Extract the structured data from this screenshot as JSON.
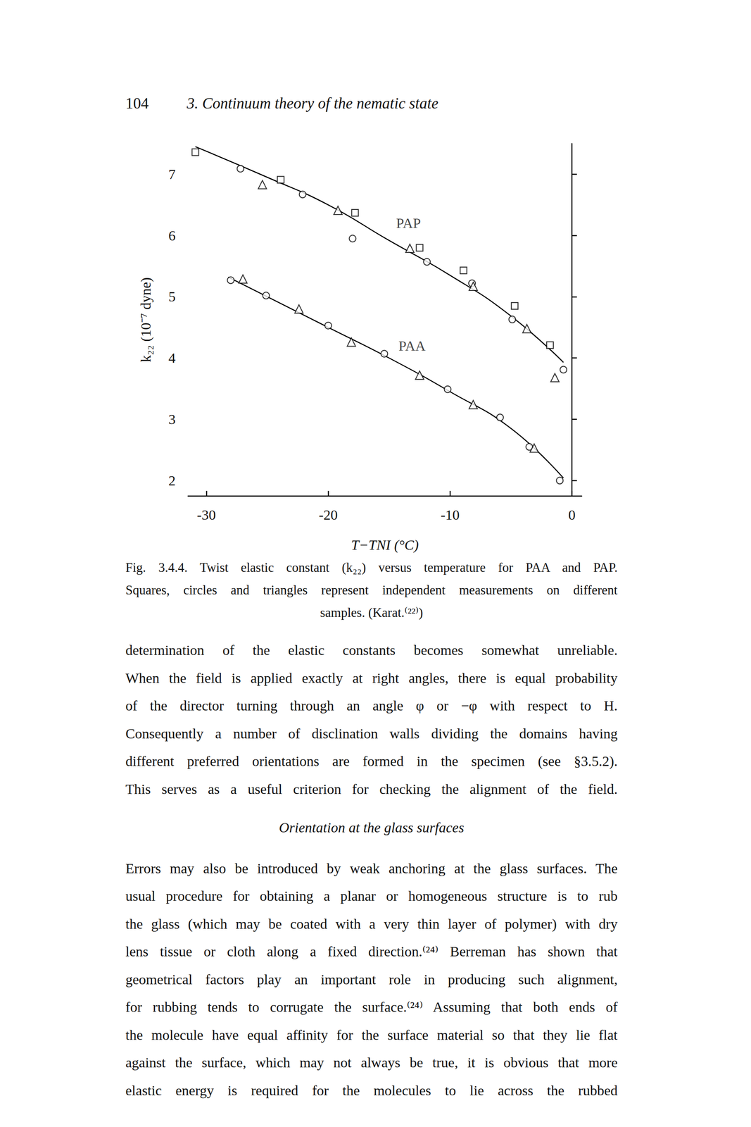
{
  "header": {
    "page_number": "104",
    "running_title": "3. Continuum theory of the nematic state"
  },
  "chart_data": {
    "type": "scatter",
    "x_label": "T−TNI (°C)",
    "y_label": "k₂₂ (10⁻⁷ dyne)",
    "xlim": [
      -31.5,
      0.8
    ],
    "xticks": [
      -30,
      -20,
      -10,
      0
    ],
    "ylim": [
      1.75,
      7.5
    ],
    "yticks": [
      2,
      3,
      4,
      5,
      6,
      7
    ],
    "grid": false,
    "annotations": [
      {
        "text": "PAP",
        "x": -14.6,
        "y": 6.2
      },
      {
        "text": "PAA",
        "x": -14.4,
        "y": 4.2
      }
    ],
    "series": [
      {
        "name": "PAP",
        "type": "line",
        "color": "#000000",
        "line_style": "solid",
        "x": [
          -30.9,
          -25,
          -20,
          -15.1,
          -10,
          -5.1,
          -0.7
        ],
        "values": [
          7.45,
          6.95,
          6.5,
          5.93,
          5.35,
          4.7,
          3.93
        ]
      },
      {
        "name": "PAA",
        "type": "line",
        "color": "#000000",
        "line_style": "solid",
        "x": [
          -28.2,
          -25,
          -20,
          -15,
          -10,
          -5,
          -0.7
        ],
        "values": [
          5.32,
          5.0,
          4.5,
          4.0,
          3.45,
          2.85,
          2.04
        ]
      },
      {
        "type": "scatter",
        "marker": "square",
        "color": "#000000",
        "x": [
          -30.9,
          -23.9,
          -17.8,
          -12.5,
          -8.9,
          -4.7,
          -1.8
        ],
        "values": [
          7.36,
          6.91,
          6.37,
          5.8,
          5.43,
          4.85,
          4.21
        ]
      },
      {
        "type": "scatter",
        "marker": "circle",
        "color": "#000000",
        "x": [
          -27.2,
          -22.1,
          -18.0,
          -11.9,
          -8.2,
          -4.9,
          -0.7,
          -28.0,
          -25.1,
          -20.0,
          -15.4,
          -10.2,
          -5.9,
          -3.5,
          -1.0
        ],
        "values": [
          7.09,
          6.67,
          5.95,
          5.57,
          5.22,
          4.63,
          3.81,
          5.27,
          5.02,
          4.53,
          4.07,
          3.49,
          3.03,
          2.55,
          2.0
        ]
      },
      {
        "type": "scatter",
        "marker": "triangle",
        "color": "#000000",
        "x": [
          -25.4,
          -19.2,
          -13.3,
          -8.1,
          -3.7,
          -1.4,
          -27.0,
          -22.4,
          -18.1,
          -12.5,
          -8.1,
          -3.1
        ],
        "values": [
          6.83,
          6.41,
          5.79,
          5.17,
          4.48,
          3.68,
          5.29,
          4.8,
          4.26,
          3.72,
          3.24,
          2.53
        ]
      }
    ]
  },
  "caption": {
    "lines": [
      "Fig. 3.4.4. Twist elastic constant (k₂₂) versus temperature for PAA and PAP.",
      "Squares, circles and triangles represent independent measurements on different",
      "samples. (Karat.⁽²²⁾)"
    ]
  },
  "body": [
    {
      "type": "paragraph",
      "lines": [
        "determination of the elastic constants becomes somewhat unreliable.",
        "When the field is applied exactly at right angles, there is equal probability",
        "of the director turning through an angle φ or −φ with respect to H.",
        "Consequently a number of disclination walls dividing the domains having",
        "different preferred orientations are formed in the specimen (see §3.5.2).",
        "This serves as a useful criterion for checking the alignment of the field."
      ]
    },
    {
      "type": "heading",
      "text": "Orientation at the glass surfaces"
    },
    {
      "type": "paragraph",
      "lines": [
        "Errors may also be introduced by weak anchoring at the glass surfaces. The",
        "usual procedure for obtaining a planar or homogeneous structure is to rub",
        "the glass (which may be coated with a very thin layer of polymer) with dry",
        "lens tissue or cloth along a fixed direction.⁽²⁴⁾ Berreman has shown that",
        "geometrical factors play an important role in producing such alignment,",
        "for rubbing tends to corrugate the surface.⁽²⁴⁾ Assuming that both ends of",
        "the molecule have equal affinity for the surface material so that they lie flat",
        "against the surface, which may not always be true, it is obvious that more",
        "elastic energy is required for the molecules to lie across the rubbed"
      ]
    }
  ]
}
